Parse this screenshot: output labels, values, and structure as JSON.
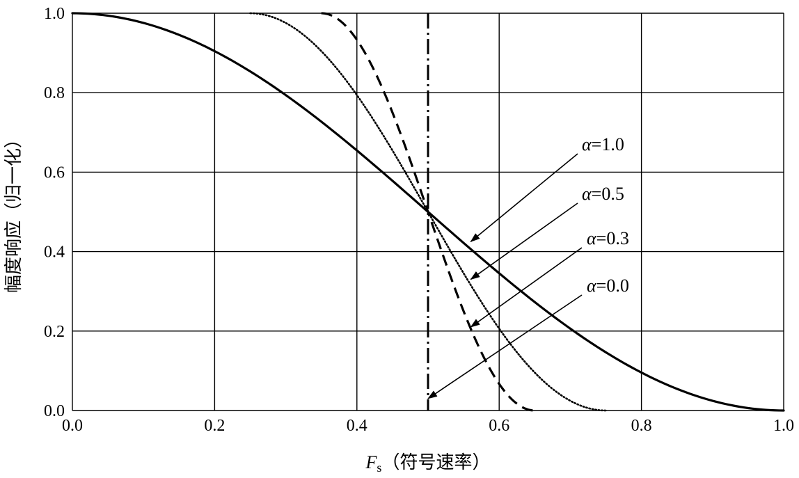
{
  "chart_data": {
    "type": "line",
    "title": "",
    "xlabel": "F",
    "xlabel_sub": "s",
    "xlabel_suffix": "（符号速率）",
    "ylabel": "幅度响应（归一化）",
    "xlim": [
      0,
      1.0
    ],
    "ylim": [
      0,
      1.0
    ],
    "x_ticks": [
      "0.0",
      "0.2",
      "0.4",
      "0.6",
      "0.8",
      "1.0"
    ],
    "y_ticks": [
      "0.0",
      "0.2",
      "0.4",
      "0.6",
      "0.8",
      "1.0"
    ],
    "grid": true,
    "series": [
      {
        "alpha": 1.0,
        "style": "solid",
        "points": [
          [
            0,
            1.0
          ],
          [
            0.1,
            0.976
          ],
          [
            0.2,
            0.905
          ],
          [
            0.3,
            0.794
          ],
          [
            0.4,
            0.655
          ],
          [
            0.5,
            0.5
          ],
          [
            0.6,
            0.345
          ],
          [
            0.7,
            0.206
          ],
          [
            0.8,
            0.095
          ],
          [
            0.9,
            0.024
          ],
          [
            1.0,
            0.0
          ]
        ]
      },
      {
        "alpha": 0.5,
        "style": "dotted",
        "points": [
          [
            0.25,
            1.0
          ],
          [
            0.3,
            0.976
          ],
          [
            0.35,
            0.905
          ],
          [
            0.4,
            0.794
          ],
          [
            0.45,
            0.655
          ],
          [
            0.5,
            0.5
          ],
          [
            0.55,
            0.345
          ],
          [
            0.6,
            0.206
          ],
          [
            0.65,
            0.095
          ],
          [
            0.7,
            0.024
          ],
          [
            0.75,
            0.0
          ]
        ]
      },
      {
        "alpha": 0.3,
        "style": "dashed",
        "points": [
          [
            0.35,
            1.0
          ],
          [
            0.38,
            0.976
          ],
          [
            0.41,
            0.905
          ],
          [
            0.44,
            0.794
          ],
          [
            0.47,
            0.655
          ],
          [
            0.5,
            0.5
          ],
          [
            0.53,
            0.345
          ],
          [
            0.56,
            0.206
          ],
          [
            0.59,
            0.095
          ],
          [
            0.62,
            0.024
          ],
          [
            0.65,
            0.0
          ]
        ]
      },
      {
        "alpha": 0.0,
        "style": "dashdot",
        "points": [
          [
            0.5,
            1.0
          ],
          [
            0.5,
            0.0
          ]
        ]
      }
    ],
    "annotations": [
      {
        "label": "α=1.0",
        "alpha_text": "α",
        "value_text": "=1.0",
        "arrow_to": [
          0.56,
          0.425
        ]
      },
      {
        "label": "α=0.5",
        "alpha_text": "α",
        "value_text": "=0.5",
        "arrow_to": [
          0.56,
          0.33
        ]
      },
      {
        "label": "α=0.3",
        "alpha_text": "α",
        "value_text": "=0.3",
        "arrow_to": [
          0.56,
          0.21
        ]
      },
      {
        "label": "α=0.0",
        "alpha_text": "α",
        "value_text": "=0.0",
        "arrow_to": [
          0.5,
          0.03
        ]
      }
    ]
  }
}
